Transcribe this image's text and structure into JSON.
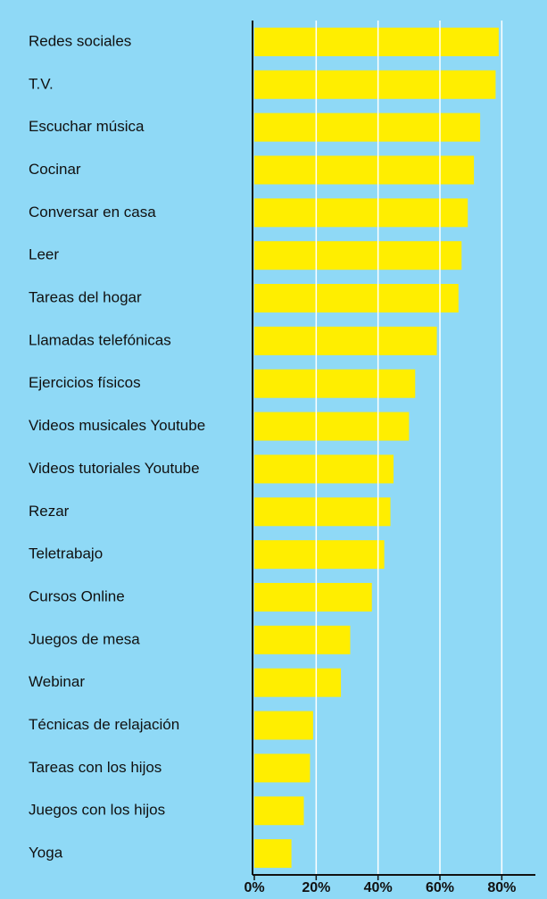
{
  "chart_data": {
    "type": "barh",
    "categories": [
      "Redes sociales",
      "T.V.",
      "Escuchar música",
      "Cocinar",
      "Conversar en casa",
      "Leer",
      "Tareas del hogar",
      "Llamadas telefónicas",
      "Ejercicios físicos",
      "Videos musicales Youtube",
      "Videos tutoriales Youtube",
      "Rezar",
      "Teletrabajo",
      "Cursos Online",
      "Juegos de mesa",
      "Webinar",
      "Técnicas de relajación",
      "Tareas con los hijos",
      "Juegos con los hijos",
      "Yoga"
    ],
    "values": [
      79,
      78,
      73,
      71,
      69,
      67,
      66,
      59,
      52,
      50,
      45,
      44,
      42,
      38,
      31,
      28,
      19,
      18,
      16,
      12
    ],
    "color": "#ffee00",
    "xlim": [
      0,
      90
    ],
    "xticks": [
      {
        "value": 0,
        "label": "0%"
      },
      {
        "value": 20,
        "label": "20%"
      },
      {
        "value": 40,
        "label": "40%"
      },
      {
        "value": 60,
        "label": "60%"
      },
      {
        "value": 80,
        "label": "80%"
      }
    ],
    "grid": true
  }
}
